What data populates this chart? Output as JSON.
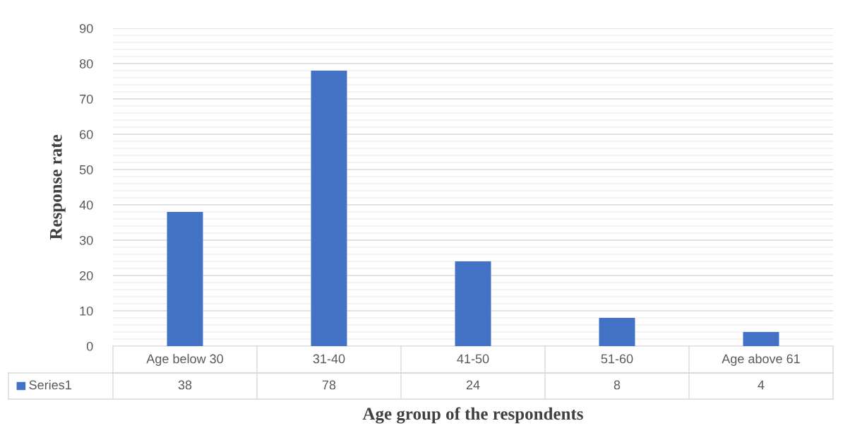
{
  "chart_data": {
    "type": "bar",
    "categories": [
      "Age below 30",
      "31-40",
      "41-50",
      "51-60",
      "Age above 61"
    ],
    "series": [
      {
        "name": "Series1",
        "color": "#4472c4",
        "values": [
          38,
          78,
          24,
          8,
          4
        ]
      }
    ],
    "xlabel": "Age group of the respondents",
    "ylabel": "Response rate",
    "ylim": [
      0,
      90
    ],
    "yticks": [
      0,
      10,
      20,
      30,
      40,
      50,
      60,
      70,
      80,
      90
    ],
    "grid": "y",
    "data_labels": true,
    "legend": "bottom"
  }
}
